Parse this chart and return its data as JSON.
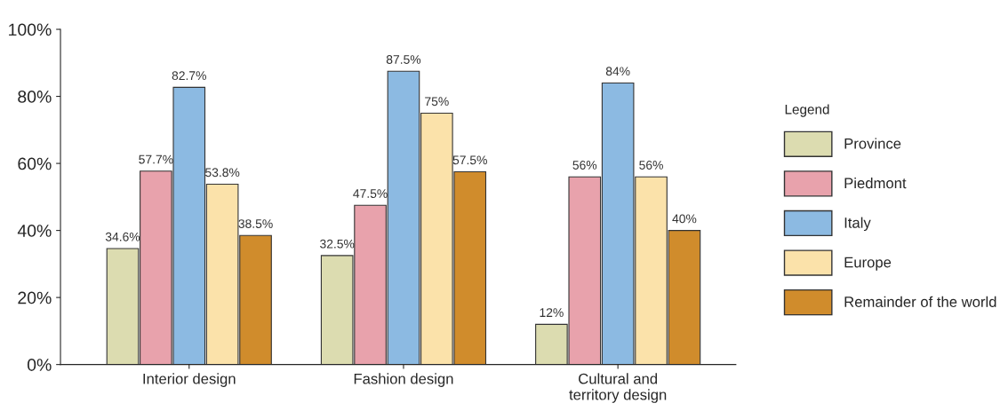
{
  "chart_data": {
    "type": "bar",
    "categories": [
      "Interior design",
      "Fashion design",
      "Cultural and\nterritory design"
    ],
    "series": [
      {
        "name": "Province",
        "color": "#dcdcb0",
        "values": [
          34.6,
          32.5,
          12
        ],
        "value_labels": [
          "34.6%",
          "32.5%",
          "12%"
        ]
      },
      {
        "name": "Piedmont",
        "color": "#e8a2ac",
        "values": [
          57.7,
          47.5,
          56
        ],
        "value_labels": [
          "57.7%",
          "47.5%",
          "56%"
        ]
      },
      {
        "name": "Italy",
        "color": "#8cbae2",
        "values": [
          82.7,
          87.5,
          84
        ],
        "value_labels": [
          "82.7%",
          "87.5%",
          "84%"
        ]
      },
      {
        "name": "Europe",
        "color": "#fbe2aa",
        "values": [
          53.8,
          75,
          56
        ],
        "value_labels": [
          "53.8%",
          "75%",
          "56%"
        ]
      },
      {
        "name": "Remainder of the world",
        "color": "#d08c2c",
        "values": [
          38.5,
          57.5,
          40
        ],
        "value_labels": [
          "38.5%",
          "57.5%",
          "40%"
        ]
      }
    ],
    "ylim": [
      0,
      100
    ],
    "yticks": [
      {
        "value": 0,
        "label": "0%"
      },
      {
        "value": 20,
        "label": "20%"
      },
      {
        "value": 40,
        "label": "40%"
      },
      {
        "value": 60,
        "label": "60%"
      },
      {
        "value": 80,
        "label": "80%"
      },
      {
        "value": 100,
        "label": "100%"
      }
    ],
    "legend": "right",
    "legend_title": "Legend",
    "grid": false
  }
}
